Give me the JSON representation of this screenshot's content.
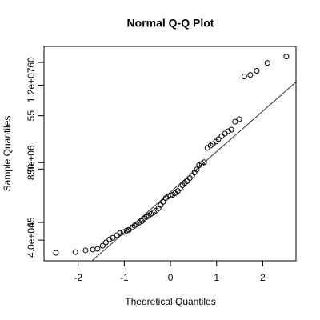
{
  "chart_data": {
    "type": "scatter",
    "title": "Normal Q-Q Plot",
    "x_label": "Theoretical Quantiles",
    "y_label": "Sample Quantiles",
    "xlim": [
      -2.74,
      2.72
    ],
    "xticks": [
      -2,
      -1,
      0,
      1,
      2
    ],
    "ylim": [
      2930000,
      14000000
    ],
    "yticks": [
      {
        "value": 4000000,
        "label": "4.0e+06"
      },
      {
        "value": 8000000,
        "label": "8.0e+06"
      },
      {
        "value": 12000000,
        "label": "1.2e+07"
      }
    ],
    "y2lim": [
      41.4,
      61.5
    ],
    "y2ticks": [
      45,
      50,
      55,
      60
    ],
    "color": "#000000",
    "x": [
      -2.48,
      -2.06,
      -1.84,
      -1.68,
      -1.58,
      -1.47,
      -1.4,
      -1.32,
      -1.25,
      -1.16,
      -1.09,
      -1.02,
      -0.95,
      -0.9,
      -0.83,
      -0.78,
      -0.73,
      -0.68,
      -0.62,
      -0.57,
      -0.52,
      -0.47,
      -0.42,
      -0.36,
      -0.31,
      -0.26,
      -0.21,
      -0.16,
      -0.1,
      -0.05,
      0,
      0.05,
      0.1,
      0.16,
      0.21,
      0.26,
      0.31,
      0.36,
      0.42,
      0.47,
      0.52,
      0.57,
      0.62,
      0.68,
      0.73,
      0.8,
      0.87,
      0.92,
      0.99,
      1.04,
      1.11,
      1.18,
      1.25,
      1.32,
      1.4,
      1.49,
      1.6,
      1.73,
      1.87,
      2.1,
      2.51
    ],
    "values": [
      3340000,
      3380000,
      3470000,
      3510000,
      3550000,
      3710000,
      3880000,
      4040000,
      4120000,
      4250000,
      4370000,
      4410000,
      4490000,
      4530000,
      4660000,
      4740000,
      4820000,
      4900000,
      4980000,
      5110000,
      5190000,
      5270000,
      5350000,
      5440000,
      5520000,
      5640000,
      5810000,
      5970000,
      6170000,
      6260000,
      6300000,
      6340000,
      6420000,
      6540000,
      6670000,
      6830000,
      6950000,
      7040000,
      7200000,
      7320000,
      7490000,
      7650000,
      7860000,
      7940000,
      8020000,
      8760000,
      8880000,
      8960000,
      9090000,
      9210000,
      9370000,
      9500000,
      9620000,
      9700000,
      10110000,
      10240000,
      12450000,
      12530000,
      12740000,
      13150000,
      13480000
    ],
    "reference_line": {
      "x": [
        -1.7,
        2.72
      ],
      "values": [
        2930000,
        12160000
      ]
    }
  }
}
